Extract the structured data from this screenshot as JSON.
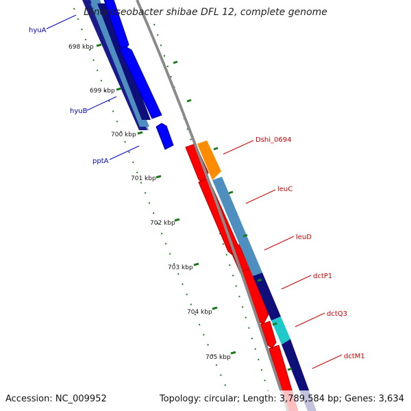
{
  "title": "Dinoroseobacter shibae DFL 12, complete genome",
  "footer": {
    "accession": "Accession: NC_009952",
    "summary": "Topology: circular; Length: 3,789,584 bp; Genes: 3,634"
  },
  "colors": {
    "backbone": "#8a8a8a",
    "tick": "#1a7a1a",
    "forward_dark": "#0000ff",
    "forward_navy": "#0f0f7a",
    "steelblue": "#4f8fc0",
    "red": "#ff0000",
    "orange": "#ff8c00",
    "cyan": "#1ec9c9",
    "label_left": "#0000cc",
    "label_right": "#cc0000"
  },
  "ticks": [
    "698 kbp",
    "699 kbp",
    "700 kbp",
    "701 kbp",
    "702 kbp",
    "703 kbp",
    "704 kbp",
    "705 kbp"
  ],
  "left_labels": [
    "hyuA",
    "hyuB",
    "pptA"
  ],
  "right_labels": [
    "Dshi_0694",
    "leuC",
    "leuD",
    "dctP1",
    "dctQ3",
    "dctM1"
  ]
}
